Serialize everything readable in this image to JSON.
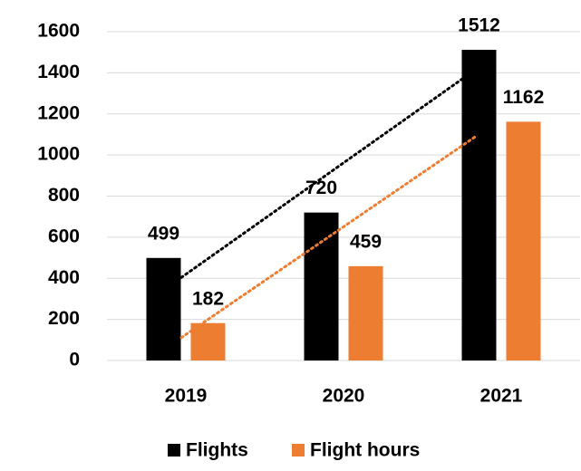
{
  "chart_data": {
    "type": "bar",
    "categories": [
      "2019",
      "2020",
      "2021"
    ],
    "series": [
      {
        "name": "Flights",
        "color": "#000000",
        "values": [
          499,
          720,
          1512
        ]
      },
      {
        "name": "Flight hours",
        "color": "#ed7d31",
        "values": [
          182,
          459,
          1162
        ]
      }
    ],
    "ylim": [
      0,
      1600
    ],
    "yticks": [
      0,
      200,
      400,
      600,
      800,
      1000,
      1200,
      1400,
      1600
    ],
    "grid": true,
    "trendline": "linear",
    "legend": "bottom",
    "data_labels": true
  }
}
